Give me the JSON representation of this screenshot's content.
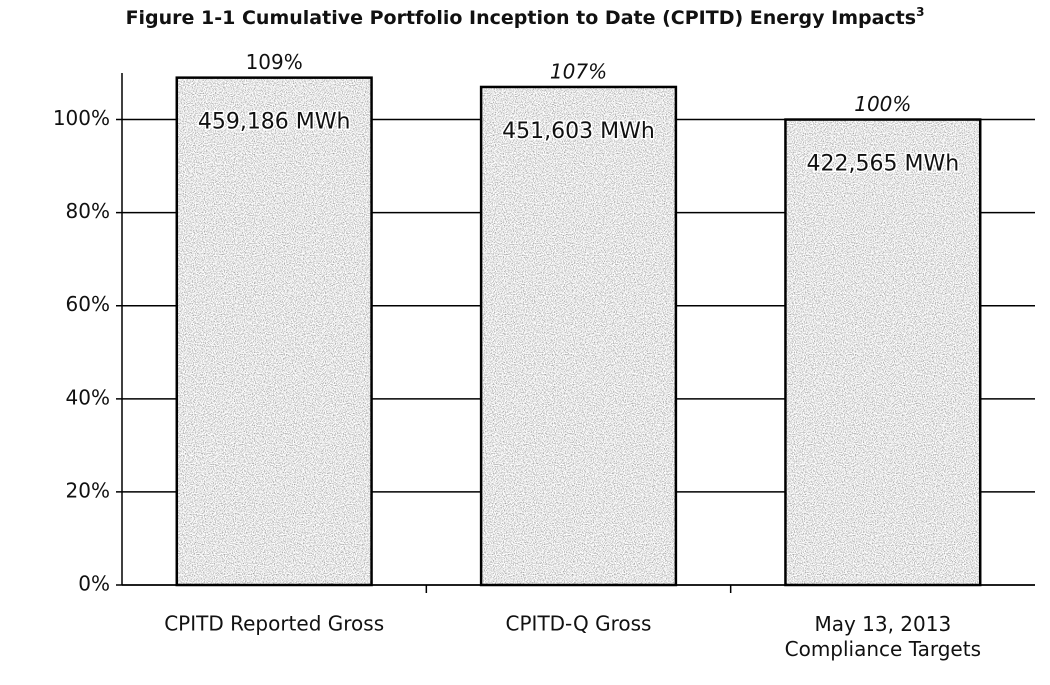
{
  "chart_data": {
    "type": "bar",
    "title": "Figure 1-1 Cumulative Portfolio Inception to Date (CPITD) Energy Impacts",
    "title_footnote": "3",
    "categories": [
      "CPITD Reported Gross",
      "CPITD-Q Gross",
      "May 13, 2013\nCompliance Targets"
    ],
    "values": [
      109,
      107,
      100
    ],
    "value_labels": [
      "109%",
      "107%",
      "100%"
    ],
    "bar_labels": [
      "459,186 MWh",
      "451,603 MWh",
      "422,565 MWh"
    ],
    "color": "#8a8a8a",
    "ylim": [
      0,
      110
    ],
    "yticks": [
      {
        "value": 0,
        "label": "0%"
      },
      {
        "value": 20,
        "label": "20%"
      },
      {
        "value": 40,
        "label": "40%"
      },
      {
        "value": 60,
        "label": "60%"
      },
      {
        "value": 80,
        "label": "80%"
      },
      {
        "value": 100,
        "label": "100%"
      }
    ],
    "grid": true
  }
}
